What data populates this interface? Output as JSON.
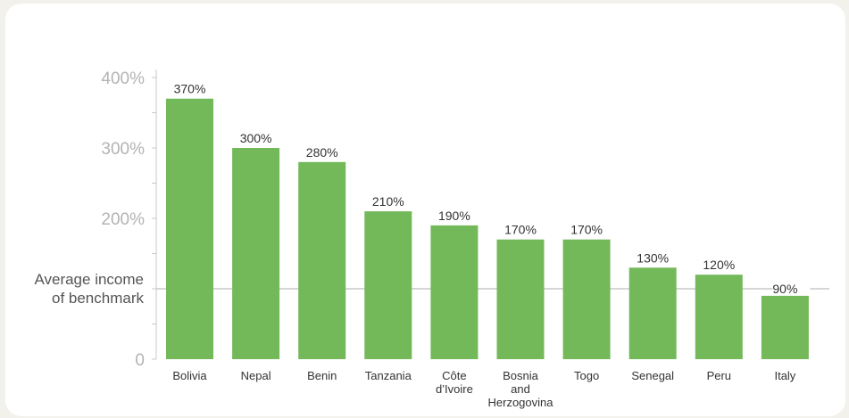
{
  "chart_data": {
    "type": "bar",
    "title": "",
    "xlabel": "",
    "ylabel": "",
    "ylim": [
      0,
      400
    ],
    "y_tick_labels": [
      {
        "value": 0,
        "label": "0"
      },
      {
        "value": 200,
        "label": "200%"
      },
      {
        "value": 300,
        "label": "300%"
      },
      {
        "value": 400,
        "label": "400%"
      }
    ],
    "benchmark": {
      "value": 100,
      "label_lines": [
        "Average income",
        "of benchmark"
      ]
    },
    "categories": [
      {
        "name": "Bolivia",
        "lines": [
          "Bolivia"
        ]
      },
      {
        "name": "Nepal",
        "lines": [
          "Nepal"
        ]
      },
      {
        "name": "Benin",
        "lines": [
          "Benin"
        ]
      },
      {
        "name": "Tanzania",
        "lines": [
          "Tanzania"
        ]
      },
      {
        "name": "Côte d’Ivoire",
        "lines": [
          "Côte",
          "d’Ivoire"
        ]
      },
      {
        "name": "Bosnia and Herzogovina",
        "lines": [
          "Bosnia",
          "and",
          "Herzogovina"
        ]
      },
      {
        "name": "Togo",
        "lines": [
          "Togo"
        ]
      },
      {
        "name": "Senegal",
        "lines": [
          "Senegal"
        ]
      },
      {
        "name": "Peru",
        "lines": [
          "Peru"
        ]
      },
      {
        "name": "Italy",
        "lines": [
          "Italy"
        ]
      }
    ],
    "values": [
      370,
      300,
      280,
      210,
      190,
      170,
      170,
      130,
      120,
      90
    ],
    "value_labels": [
      "370%",
      "300%",
      "280%",
      "210%",
      "190%",
      "170%",
      "170%",
      "130%",
      "120%",
      "90%"
    ],
    "grid": false,
    "colors": {
      "bar": "#73b95a",
      "benchmark_line": "#c8c8c8",
      "axis": "#c8c8c8"
    }
  }
}
